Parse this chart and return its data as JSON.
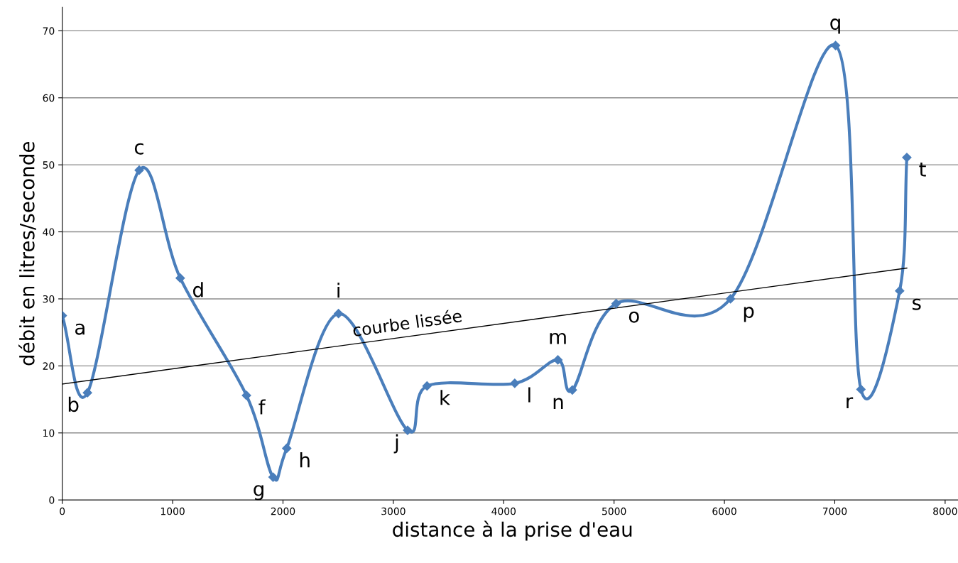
{
  "chart_data": {
    "type": "line",
    "xlabel": "distance à la prise d'eau",
    "ylabel": "débit en litres/seconde",
    "xlim": [
      0,
      8160
    ],
    "ylim": [
      0,
      73.5
    ],
    "xticks": [
      0,
      1000,
      2000,
      3000,
      4000,
      5000,
      6000,
      7000,
      8000
    ],
    "yticks": [
      0,
      10,
      20,
      30,
      40,
      50,
      60,
      70
    ],
    "grid": "y",
    "marker": "diamond",
    "line_style": "solid",
    "legend": false,
    "series": [
      {
        "color": "#4a7ebb",
        "x": [
          0,
          228,
          697,
          1069,
          1669,
          1910,
          2034,
          2503,
          3129,
          3305,
          4100,
          4491,
          4622,
          5019,
          6055,
          7007,
          7237,
          7588,
          7653
        ],
        "values": [
          27.5,
          16.0,
          49.2,
          33.1,
          15.6,
          3.4,
          7.7,
          27.8,
          10.4,
          17.0,
          17.4,
          20.9,
          16.4,
          29.3,
          30.0,
          67.8,
          16.5,
          31.2,
          51.1
        ]
      },
      {
        "type": "line",
        "name": "courbe lissée",
        "color": "#000000",
        "marker": "none",
        "x": [
          0,
          7653
        ],
        "values": [
          17.3,
          34.6
        ]
      }
    ],
    "annotations": [
      {
        "text": "a",
        "x": 0,
        "y": 27.5
      },
      {
        "text": "b",
        "x": 228,
        "y": 16.0
      },
      {
        "text": "c",
        "x": 697,
        "y": 49.2
      },
      {
        "text": "d",
        "x": 1069,
        "y": 33.1
      },
      {
        "text": "f",
        "x": 1669,
        "y": 15.6
      },
      {
        "text": "g",
        "x": 1910,
        "y": 3.4
      },
      {
        "text": "h",
        "x": 2034,
        "y": 7.7
      },
      {
        "text": "i",
        "x": 2503,
        "y": 27.8
      },
      {
        "text": "j",
        "x": 3129,
        "y": 10.4
      },
      {
        "text": "k",
        "x": 3305,
        "y": 17.0
      },
      {
        "text": "l",
        "x": 4100,
        "y": 17.4
      },
      {
        "text": "m",
        "x": 4491,
        "y": 20.9
      },
      {
        "text": "n",
        "x": 4622,
        "y": 16.4
      },
      {
        "text": "o",
        "x": 5019,
        "y": 29.3
      },
      {
        "text": "p",
        "x": 6055,
        "y": 30.0
      },
      {
        "text": "q",
        "x": 7007,
        "y": 67.8
      },
      {
        "text": "r",
        "x": 7237,
        "y": 16.5
      },
      {
        "text": "s",
        "x": 7588,
        "y": 31.2
      },
      {
        "text": "t",
        "x": 7653,
        "y": 51.1
      }
    ]
  }
}
